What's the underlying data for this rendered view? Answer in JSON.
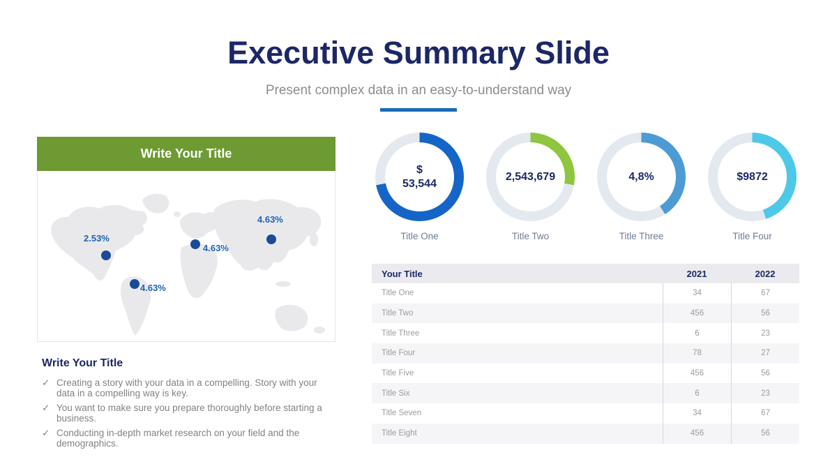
{
  "slide": {
    "title": "Executive Summary Slide",
    "subtitle": "Present complex data in an easy-to-understand way",
    "accent_color": "#1a6ab5",
    "title_color": "#1b2766"
  },
  "map_panel": {
    "header_title": "Write Your Title",
    "header_bg": "#6d9a33"
  },
  "notes": {
    "heading": "Write Your Title",
    "bullet_glyph": "✓",
    "bullets": [
      "Creating a story with your data in a compelling. Story with your data in a compelling way is key.",
      "You want to make sure you prepare thoroughly before starting a business.",
      "Conducting in-depth market research on your field and the demographics."
    ]
  },
  "donut_display": [
    "$\n53,544",
    "2,543,679",
    "4,8%",
    "$9872"
  ],
  "chart_data": [
    {
      "type": "pie",
      "subtype": "donut-gauges",
      "track_color": "#e4e9ef",
      "items": [
        {
          "label": "Title One",
          "center_value": "$ 53,544",
          "fill_percent": 72,
          "color": "#1565c8"
        },
        {
          "label": "Title Two",
          "center_value": "2,543,679",
          "fill_percent": 28,
          "color": "#8ec73f"
        },
        {
          "label": "Title Three",
          "center_value": "4,8%",
          "fill_percent": 41,
          "color": "#4d9bd5"
        },
        {
          "label": "Title Four",
          "center_value": "$9872",
          "fill_percent": 45,
          "color": "#4ec8e8"
        }
      ]
    },
    {
      "type": "table",
      "header": [
        "Your Title",
        "2021",
        "2022"
      ],
      "rows": [
        [
          "Title One",
          "34",
          "67"
        ],
        [
          "Title Two",
          "456",
          "56"
        ],
        [
          "Title Three",
          "6",
          "23"
        ],
        [
          "Title Four",
          "78",
          "27"
        ],
        [
          "Title Five",
          "456",
          "56"
        ],
        [
          "Title Six",
          "6",
          "23"
        ],
        [
          "Title Seven",
          "34",
          "67"
        ],
        [
          "Title Eight",
          "456",
          "56"
        ]
      ]
    },
    {
      "type": "map",
      "title": "world-map-markers",
      "points": [
        {
          "region": "north-america",
          "label": "2.53%"
        },
        {
          "region": "south-america",
          "label": "4.63%"
        },
        {
          "region": "eastern-europe",
          "label": "4.63%"
        },
        {
          "region": "east-asia",
          "label": "4.63%"
        }
      ]
    }
  ]
}
